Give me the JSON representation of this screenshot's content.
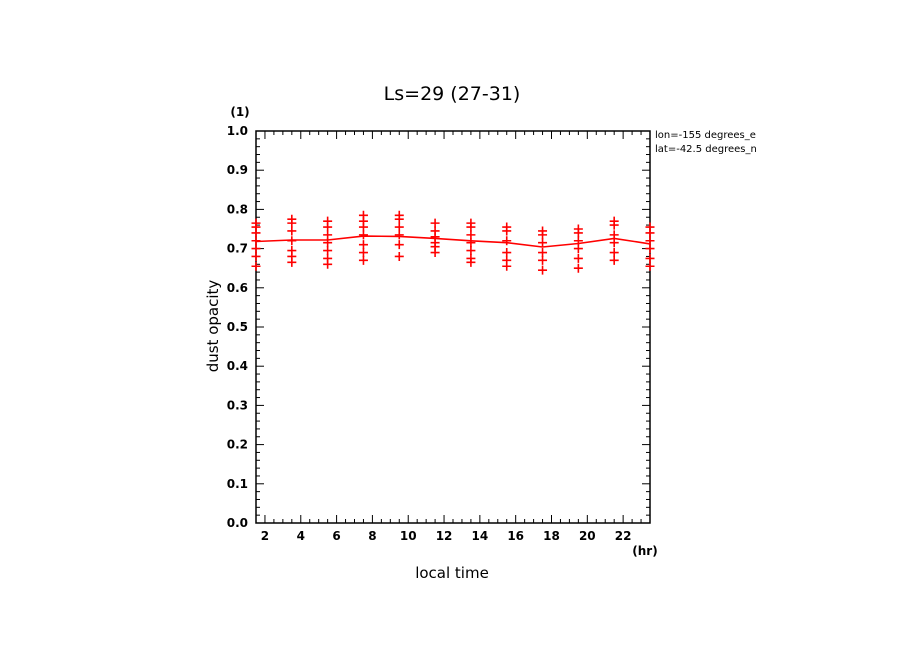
{
  "chart_data": {
    "type": "line",
    "title": "Ls=29 (27-31)",
    "xlabel": "local time",
    "ylabel": "dust opacity",
    "x_unit": "(hr)",
    "y_unit": "(1)",
    "xlim": [
      1.5,
      23.5
    ],
    "ylim": [
      0.0,
      1.0
    ],
    "x_ticks": [
      2,
      4,
      6,
      8,
      10,
      12,
      14,
      16,
      18,
      20,
      22
    ],
    "y_ticks": [
      "0.0",
      "0.1",
      "0.2",
      "0.3",
      "0.4",
      "0.5",
      "0.6",
      "0.7",
      "0.8",
      "0.9",
      "1.0"
    ],
    "annotations": [
      "lon=-155 degrees_e",
      "lat=-42.5 degrees_n"
    ],
    "color": "#ff0000",
    "series": [
      {
        "style": "line",
        "x": [
          1.5,
          3.5,
          5.5,
          7.5,
          9.5,
          11.5,
          13.5,
          15.5,
          17.5,
          19.5,
          21.5,
          23.5
        ],
        "y": [
          0.718,
          0.722,
          0.722,
          0.732,
          0.731,
          0.726,
          0.72,
          0.715,
          0.704,
          0.713,
          0.726,
          0.712
        ]
      },
      {
        "style": "markers",
        "marker": "+",
        "points": [
          [
            1.5,
            0.765
          ],
          [
            1.5,
            0.755
          ],
          [
            1.5,
            0.74
          ],
          [
            1.5,
            0.72
          ],
          [
            1.5,
            0.7
          ],
          [
            1.5,
            0.68
          ],
          [
            1.5,
            0.655
          ],
          [
            3.5,
            0.775
          ],
          [
            3.5,
            0.765
          ],
          [
            3.5,
            0.745
          ],
          [
            3.5,
            0.72
          ],
          [
            3.5,
            0.695
          ],
          [
            3.5,
            0.68
          ],
          [
            3.5,
            0.665
          ],
          [
            5.5,
            0.77
          ],
          [
            5.5,
            0.755
          ],
          [
            5.5,
            0.735
          ],
          [
            5.5,
            0.715
          ],
          [
            5.5,
            0.695
          ],
          [
            5.5,
            0.675
          ],
          [
            5.5,
            0.66
          ],
          [
            7.5,
            0.785
          ],
          [
            7.5,
            0.77
          ],
          [
            7.5,
            0.755
          ],
          [
            7.5,
            0.735
          ],
          [
            7.5,
            0.71
          ],
          [
            7.5,
            0.69
          ],
          [
            7.5,
            0.67
          ],
          [
            9.5,
            0.785
          ],
          [
            9.5,
            0.775
          ],
          [
            9.5,
            0.755
          ],
          [
            9.5,
            0.735
          ],
          [
            9.5,
            0.71
          ],
          [
            9.5,
            0.68
          ],
          [
            11.5,
            0.765
          ],
          [
            11.5,
            0.745
          ],
          [
            11.5,
            0.73
          ],
          [
            11.5,
            0.715
          ],
          [
            11.5,
            0.705
          ],
          [
            11.5,
            0.69
          ],
          [
            13.5,
            0.765
          ],
          [
            13.5,
            0.755
          ],
          [
            13.5,
            0.735
          ],
          [
            13.5,
            0.715
          ],
          [
            13.5,
            0.695
          ],
          [
            13.5,
            0.675
          ],
          [
            13.5,
            0.665
          ],
          [
            15.5,
            0.755
          ],
          [
            15.5,
            0.745
          ],
          [
            15.5,
            0.72
          ],
          [
            15.5,
            0.69
          ],
          [
            15.5,
            0.67
          ],
          [
            15.5,
            0.655
          ],
          [
            17.5,
            0.745
          ],
          [
            17.5,
            0.735
          ],
          [
            17.5,
            0.715
          ],
          [
            17.5,
            0.69
          ],
          [
            17.5,
            0.67
          ],
          [
            17.5,
            0.645
          ],
          [
            19.5,
            0.75
          ],
          [
            19.5,
            0.74
          ],
          [
            19.5,
            0.72
          ],
          [
            19.5,
            0.7
          ],
          [
            19.5,
            0.675
          ],
          [
            19.5,
            0.65
          ],
          [
            21.5,
            0.77
          ],
          [
            21.5,
            0.76
          ],
          [
            21.5,
            0.735
          ],
          [
            21.5,
            0.715
          ],
          [
            21.5,
            0.69
          ],
          [
            21.5,
            0.67
          ],
          [
            23.5,
            0.755
          ],
          [
            23.5,
            0.74
          ],
          [
            23.5,
            0.72
          ],
          [
            23.5,
            0.7
          ],
          [
            23.5,
            0.675
          ],
          [
            23.5,
            0.655
          ]
        ]
      }
    ]
  }
}
